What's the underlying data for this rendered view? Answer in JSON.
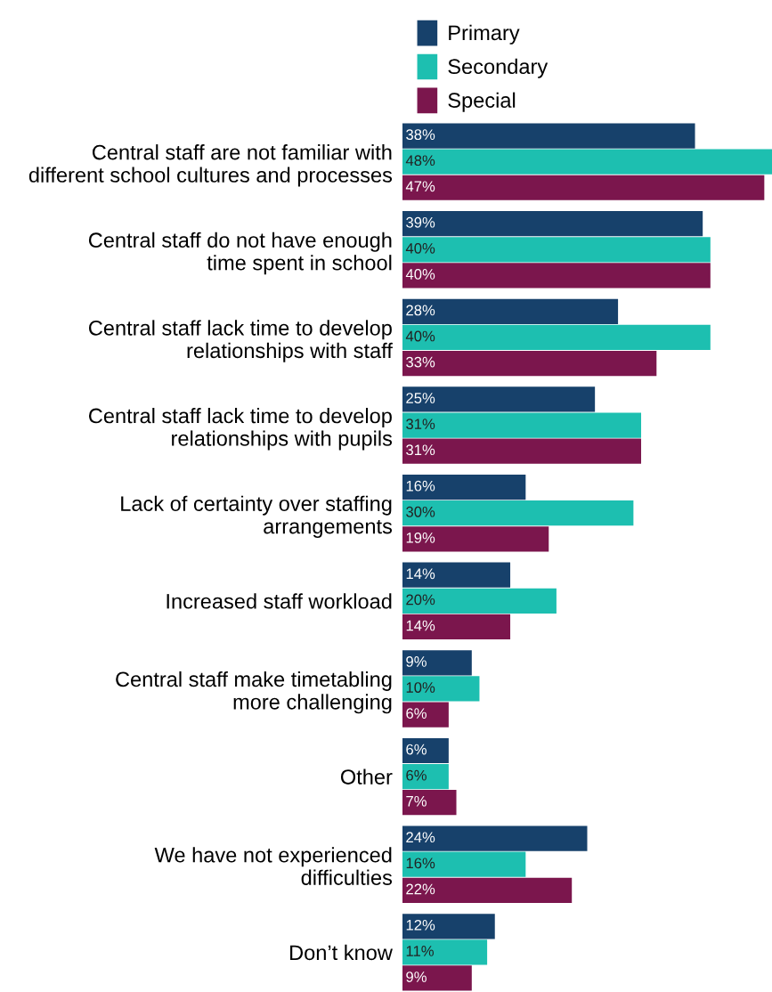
{
  "chart_data": {
    "type": "bar",
    "orientation": "horizontal",
    "categories": [
      "Central staff are not familiar with\ndifferent school cultures and processes",
      "Central staff do not have enough\ntime spent in school",
      "Central staff lack time to develop\nrelationships with staff",
      "Central staff lack time to develop\nrelationships with pupils",
      "Lack of certainty over staffing\narrangements",
      "Increased staff workload",
      "Central staff make timetabling\nmore challenging",
      "Other",
      "We have not experienced\ndifficulties",
      "Don’t know"
    ],
    "series": [
      {
        "name": "Primary",
        "color": "#17416b",
        "values": [
          38,
          39,
          28,
          25,
          16,
          14,
          9,
          6,
          24,
          12
        ],
        "value_labels": [
          "38%",
          "39%",
          "28%",
          "25%",
          "16%",
          "14%",
          "9%",
          "6%",
          "24%",
          "12%"
        ]
      },
      {
        "name": "Secondary",
        "color": "#1dbfb0",
        "values": [
          48,
          40,
          40,
          31,
          30,
          20,
          10,
          6,
          16,
          11
        ],
        "value_labels": [
          "48%",
          "40%",
          "40%",
          "31%",
          "30%",
          "20%",
          "10%",
          "6%",
          "16%",
          "11%"
        ]
      },
      {
        "name": "Special",
        "color": "#7b164d",
        "values": [
          47,
          40,
          33,
          31,
          19,
          14,
          6,
          7,
          22,
          9
        ],
        "value_labels": [
          "47%",
          "40%",
          "33%",
          "31%",
          "19%",
          "14%",
          "6%",
          "7%",
          "22%",
          "9%"
        ]
      }
    ],
    "tick_labels": "y",
    "legend": "top",
    "grid": false
  }
}
